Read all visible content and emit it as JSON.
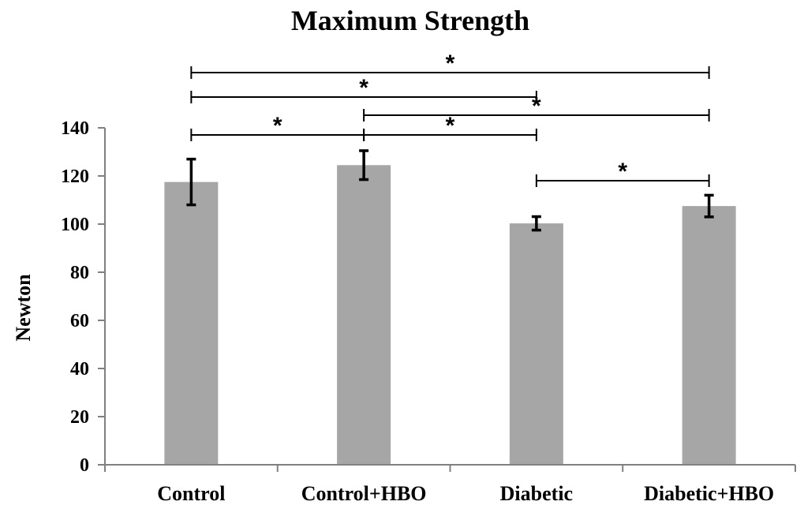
{
  "chart_data": {
    "type": "bar",
    "title": "Maximum Strength",
    "xlabel": "",
    "ylabel": "Newton",
    "categories": [
      "Control",
      "Control+HBO",
      "Diabetic",
      "Diabetic+HBO"
    ],
    "values": [
      117.5,
      124.5,
      100.3,
      107.5
    ],
    "error": [
      9.5,
      6.0,
      2.8,
      4.5
    ],
    "ylim": [
      0,
      140
    ],
    "yticks": [
      0,
      20,
      40,
      60,
      80,
      100,
      120,
      140
    ],
    "grid": false,
    "legend": "none",
    "bar_color": "#a6a6a6",
    "significance": [
      {
        "from": "Control",
        "to": "Diabetic+HBO",
        "label": "*"
      },
      {
        "from": "Control",
        "to": "Diabetic",
        "label": "*"
      },
      {
        "from": "Control+HBO",
        "to": "Diabetic+HBO",
        "label": "*"
      },
      {
        "from": "Control",
        "to": "Control+HBO",
        "label": "*"
      },
      {
        "from": "Control+HBO",
        "to": "Diabetic",
        "label": "*"
      },
      {
        "from": "Diabetic",
        "to": "Diabetic+HBO",
        "label": "*"
      }
    ]
  }
}
